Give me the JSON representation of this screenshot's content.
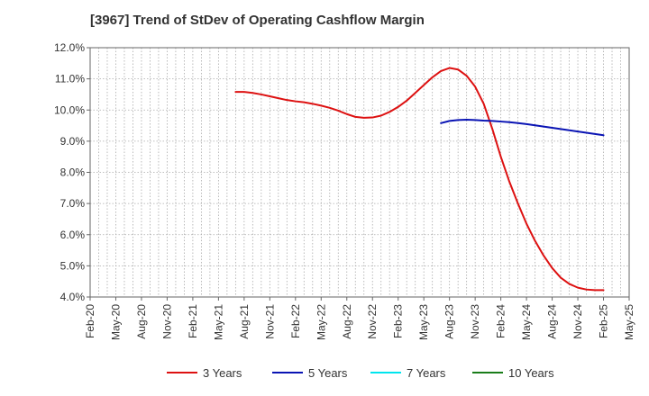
{
  "chart_data": {
    "type": "line",
    "title": "[3967]  Trend of StDev of Operating Cashflow Margin",
    "xlabel": "",
    "ylabel": "",
    "x_ticks": [
      "Feb-20",
      "May-20",
      "Aug-20",
      "Nov-20",
      "Feb-21",
      "May-21",
      "Aug-21",
      "Nov-21",
      "Feb-22",
      "May-22",
      "Aug-22",
      "Nov-22",
      "Feb-23",
      "May-23",
      "Aug-23",
      "Nov-23",
      "Feb-24",
      "May-24",
      "Aug-24",
      "Nov-24",
      "Feb-25",
      "May-25"
    ],
    "y_ticks": [
      "4.0%",
      "5.0%",
      "6.0%",
      "7.0%",
      "8.0%",
      "9.0%",
      "10.0%",
      "11.0%",
      "12.0%"
    ],
    "ylim": [
      4.0,
      12.0
    ],
    "grid": true,
    "legend_position": "bottom",
    "series": [
      {
        "name": "3 Years",
        "color": "#dd1111",
        "points": [
          [
            "Jul-21",
            10.58
          ],
          [
            "Aug-21",
            10.58
          ],
          [
            "Sep-21",
            10.55
          ],
          [
            "Oct-21",
            10.5
          ],
          [
            "Nov-21",
            10.44
          ],
          [
            "Dec-21",
            10.38
          ],
          [
            "Jan-22",
            10.32
          ],
          [
            "Feb-22",
            10.28
          ],
          [
            "Mar-22",
            10.25
          ],
          [
            "Apr-22",
            10.2
          ],
          [
            "May-22",
            10.14
          ],
          [
            "Jun-22",
            10.07
          ],
          [
            "Jul-22",
            9.98
          ],
          [
            "Aug-22",
            9.87
          ],
          [
            "Sep-22",
            9.78
          ],
          [
            "Oct-22",
            9.75
          ],
          [
            "Nov-22",
            9.76
          ],
          [
            "Dec-22",
            9.82
          ],
          [
            "Jan-23",
            9.94
          ],
          [
            "Feb-23",
            10.1
          ],
          [
            "Mar-23",
            10.3
          ],
          [
            "Apr-23",
            10.55
          ],
          [
            "May-23",
            10.8
          ],
          [
            "Jun-23",
            11.05
          ],
          [
            "Jul-23",
            11.25
          ],
          [
            "Aug-23",
            11.35
          ],
          [
            "Sep-23",
            11.3
          ],
          [
            "Oct-23",
            11.1
          ],
          [
            "Nov-23",
            10.75
          ],
          [
            "Dec-23",
            10.2
          ],
          [
            "Jan-24",
            9.4
          ],
          [
            "Feb-24",
            8.5
          ],
          [
            "Mar-24",
            7.7
          ],
          [
            "Apr-24",
            7.0
          ],
          [
            "May-24",
            6.35
          ],
          [
            "Jun-24",
            5.8
          ],
          [
            "Jul-24",
            5.33
          ],
          [
            "Aug-24",
            4.93
          ],
          [
            "Sep-24",
            4.62
          ],
          [
            "Oct-24",
            4.42
          ],
          [
            "Nov-24",
            4.3
          ],
          [
            "Dec-24",
            4.24
          ],
          [
            "Jan-25",
            4.22
          ],
          [
            "Feb-25",
            4.22
          ]
        ]
      },
      {
        "name": "5 Years",
        "color": "#0a14b4",
        "points": [
          [
            "Jul-23",
            9.58
          ],
          [
            "Aug-23",
            9.65
          ],
          [
            "Sep-23",
            9.68
          ],
          [
            "Oct-23",
            9.69
          ],
          [
            "Nov-23",
            9.68
          ],
          [
            "Dec-23",
            9.66
          ],
          [
            "Jan-24",
            9.65
          ],
          [
            "Feb-24",
            9.63
          ],
          [
            "Mar-24",
            9.61
          ],
          [
            "Apr-24",
            9.58
          ],
          [
            "May-24",
            9.55
          ],
          [
            "Jun-24",
            9.51
          ],
          [
            "Jul-24",
            9.47
          ],
          [
            "Aug-24",
            9.43
          ],
          [
            "Sep-24",
            9.39
          ],
          [
            "Oct-24",
            9.35
          ],
          [
            "Nov-24",
            9.31
          ],
          [
            "Dec-24",
            9.27
          ],
          [
            "Jan-25",
            9.23
          ],
          [
            "Feb-25",
            9.19
          ]
        ]
      },
      {
        "name": "7 Years",
        "color": "#00e5ee",
        "points": []
      },
      {
        "name": "10 Years",
        "color": "#1a7d1a",
        "points": []
      }
    ]
  }
}
